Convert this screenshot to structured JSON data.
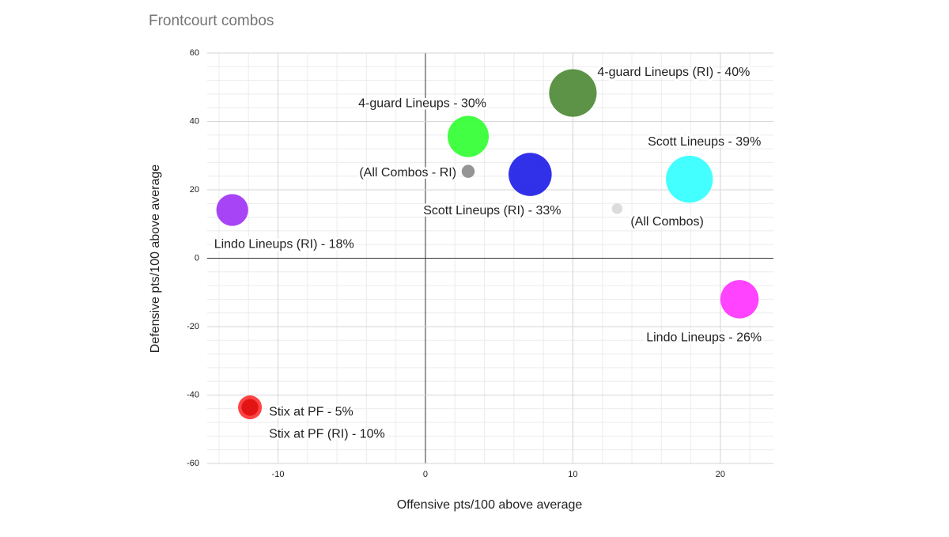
{
  "chart_data": {
    "type": "bubble",
    "title": "Frontcourt combos",
    "x_label": "Offensive pts/100 above average",
    "y_label": "Defensive pts/100 above average",
    "xlim": [
      -14.8,
      23.6
    ],
    "xticks": [
      -10,
      0,
      10,
      20
    ],
    "ylim": [
      -60,
      60
    ],
    "yticks": [
      -60,
      -40,
      -20,
      0,
      20,
      40,
      60
    ],
    "grid": true,
    "minor_grid_divisions": 5,
    "points": [
      {
        "label": "4-guard Lineups (RI) - 40%",
        "color": "#4e8a36",
        "x": 10,
        "y": 48.3,
        "size": 40
      },
      {
        "label": "4-guard Lineups - 30%",
        "color": "#33ff33",
        "x": 2.9,
        "y": 35.6,
        "size": 30
      },
      {
        "label": "(All Combos - RI)",
        "color": "#8c8c8c",
        "x": 2.9,
        "y": 25.4,
        "size": 3
      },
      {
        "label": "Scott Lineups (RI) - 33%",
        "color": "#2020e8",
        "x": 7.1,
        "y": 24.5,
        "size": 33
      },
      {
        "label": "Scott Lineups - 39%",
        "color": "#33ffff",
        "x": 17.9,
        "y": 23.1,
        "size": 39
      },
      {
        "label": "(All Combos)",
        "color": "#d9d9d9",
        "x": 13.0,
        "y": 14.5,
        "size": 2
      },
      {
        "label": "Lindo Lineups (RI) - 18%",
        "color": "#a035f5",
        "x": -13.1,
        "y": 14.1,
        "size": 18
      },
      {
        "label": "Lindo Lineups - 26%",
        "color": "#ff33ff",
        "x": 21.3,
        "y": -12.0,
        "size": 26
      },
      {
        "label": "Stix at PF (RI) - 10%",
        "color": "#ff3333",
        "x": -11.9,
        "y": -43.6,
        "size": 10
      },
      {
        "label": "Stix at PF - 5%",
        "color": "#e01010",
        "x": -11.9,
        "y": -43.6,
        "size": 5
      }
    ]
  }
}
